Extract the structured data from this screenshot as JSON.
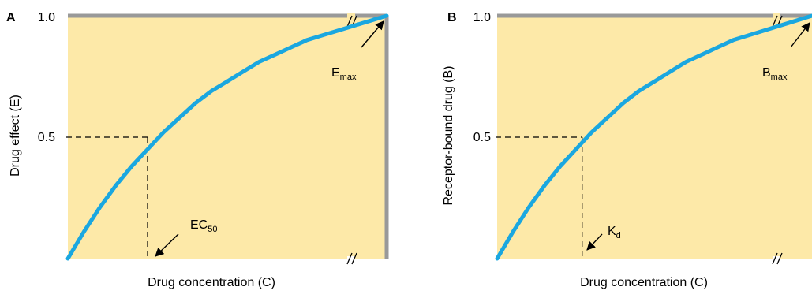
{
  "chart_data": [
    {
      "type": "line",
      "panel_label": "A",
      "ylabel": "Drug effect (E)",
      "xlabel": "Drug concentration (C)",
      "ylim": [
        0,
        1.0
      ],
      "y_ticks": [
        "1.0",
        "0.5"
      ],
      "x_axis_break": true,
      "series": [
        {
          "x": [
            0,
            0.05,
            0.1,
            0.15,
            0.2,
            0.25,
            0.3,
            0.35,
            0.4,
            0.45,
            0.5,
            0.55,
            0.6,
            0.65,
            0.7,
            0.75,
            0.8,
            0.85,
            0.9,
            0.95,
            1.0
          ],
          "values": [
            0,
            0.11,
            0.21,
            0.3,
            0.38,
            0.45,
            0.52,
            0.58,
            0.64,
            0.69,
            0.73,
            0.77,
            0.81,
            0.84,
            0.87,
            0.9,
            0.92,
            0.94,
            0.96,
            0.98,
            1.0
          ]
        }
      ],
      "half_max_x": 0.25,
      "half_max_y": 0.5,
      "annotations": {
        "max": {
          "main": "E",
          "sub": "max"
        },
        "half": {
          "main": "EC",
          "sub": "50"
        }
      },
      "colors": {
        "curve": "#1aa7e0",
        "plot_bg": "#fde9a8",
        "frame": "#999999"
      }
    },
    {
      "type": "line",
      "panel_label": "B",
      "ylabel": "Receptor-bound drug (B)",
      "xlabel": "Drug concentration (C)",
      "ylim": [
        0,
        1.0
      ],
      "y_ticks": [
        "1.0",
        "0.5"
      ],
      "x_axis_break": true,
      "series": [
        {
          "x": [
            0,
            0.05,
            0.1,
            0.15,
            0.2,
            0.25,
            0.3,
            0.35,
            0.4,
            0.45,
            0.5,
            0.55,
            0.6,
            0.65,
            0.7,
            0.75,
            0.8,
            0.85,
            0.9,
            0.95,
            1.0
          ],
          "values": [
            0,
            0.11,
            0.21,
            0.3,
            0.38,
            0.45,
            0.52,
            0.58,
            0.64,
            0.69,
            0.73,
            0.77,
            0.81,
            0.84,
            0.87,
            0.9,
            0.92,
            0.94,
            0.96,
            0.98,
            1.0
          ]
        }
      ],
      "half_max_x": 0.27,
      "half_max_y": 0.5,
      "annotations": {
        "max": {
          "main": "B",
          "sub": "max"
        },
        "half": {
          "main": "K",
          "sub": "d"
        }
      },
      "colors": {
        "curve": "#1aa7e0",
        "plot_bg": "#fde9a8",
        "frame": "#999999"
      }
    }
  ]
}
